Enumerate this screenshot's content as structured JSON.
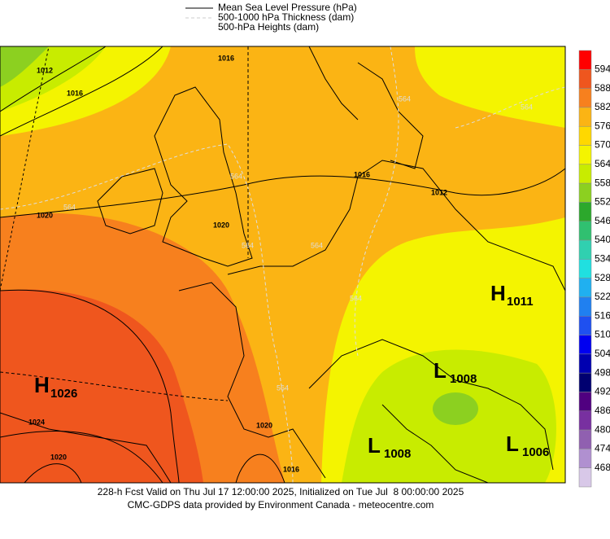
{
  "legend": {
    "items": [
      "Mean Sea Level Pressure (hPa)",
      "500-1000 hPa Thickness (dam)",
      "500-hPa Heights (dam)"
    ]
  },
  "colorbar": {
    "labels": [
      594,
      588,
      582,
      576,
      570,
      564,
      558,
      552,
      546,
      540,
      534,
      528,
      522,
      516,
      510,
      504,
      498,
      492,
      486,
      480,
      474,
      468
    ],
    "colors": [
      "#ff0000",
      "#ef561e",
      "#f7801e",
      "#fbb414",
      "#ffd800",
      "#f4f400",
      "#c8ec00",
      "#8cd020",
      "#2ca82c",
      "#30c070",
      "#30d0b0",
      "#20e0e0",
      "#20b0f0",
      "#2080f0",
      "#1f50f0",
      "#0000f0",
      "#0000b0",
      "#000070",
      "#500080",
      "#7830a0",
      "#9060b0",
      "#b090d0",
      "#d8c8e8",
      "#ffffff"
    ]
  },
  "systems": [
    {
      "letter": "H",
      "value": "1026"
    },
    {
      "letter": "H",
      "value": "1011"
    },
    {
      "letter": "L",
      "value": "1008"
    },
    {
      "letter": "L",
      "value": "1008"
    },
    {
      "letter": "L",
      "value": "1006"
    }
  ],
  "contour_labels": [
    "1012",
    "1016",
    "1020",
    "1024",
    "1020",
    "1020",
    "1016",
    "1020",
    "1016",
    "1012",
    "1016"
  ],
  "thickness_labels": [
    "564",
    "564",
    "564",
    "564",
    "564",
    "564",
    "564",
    "564"
  ],
  "footer": {
    "line1": "228-h Fcst Valid on Thu Jul 17 12:00:00 2025, Initialized on Tue Jul  8 00:00:00 2025",
    "line2": "CMC-GDPS data provided by Environment Canada - meteocentre.com"
  }
}
